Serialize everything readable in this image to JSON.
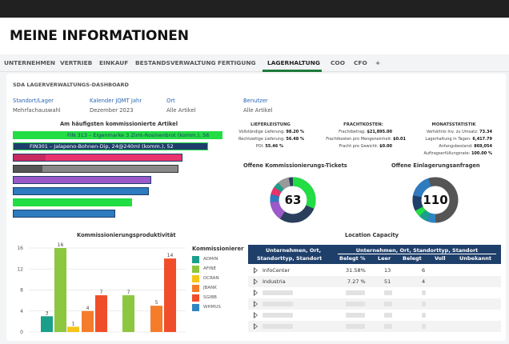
{
  "header": {
    "title": "MEINE INFORMATIONEN"
  },
  "tabs": [
    {
      "label": "UNTERNEHMEN"
    },
    {
      "label": "VERTRIEB"
    },
    {
      "label": "EINKAUF"
    },
    {
      "label": "BESTANDSVERWALTUNG"
    },
    {
      "label": "FERTIGUNG"
    },
    {
      "label": "LAGERHALTUNG"
    },
    {
      "label": "COO"
    },
    {
      "label": "CFO"
    },
    {
      "label": "+"
    }
  ],
  "dashboard": {
    "title": "SDA LAGERVERWALTUNGS-DASHBOARD"
  },
  "filters": [
    {
      "label": "Standort/Lager",
      "value": "Mehrfachauswahl"
    },
    {
      "label": "Kalender JQMT Jahr",
      "value": "Dezember 2023"
    },
    {
      "label": "Ort",
      "value": "Alle Artikel"
    },
    {
      "label": "Benutzer",
      "value": "Alle Artikel"
    }
  ],
  "top_items": {
    "title": "Am häufigsten kommissionierte Artikel",
    "label1": "FIN 313 – Eigenmarke 3 Zimt-Rosinenbrot (komm.), 56",
    "label2": "FIN301 – Jalapeno-Bohnen-Dip, 24@240ml (komm.), 52",
    "bar_levels": [
      1.0,
      0.93,
      0.81,
      0.79,
      0.66,
      0.65,
      0.57,
      0.49
    ],
    "colors": {
      "green": "#22dd44",
      "navy": "#1f3f6b",
      "pink": "#e8336e",
      "gray": "#888888",
      "purple": "#9b59c9",
      "blue": "#2e7bbf"
    }
  },
  "stats": {
    "lieferleistung": {
      "title": "LIEFERLEISTUNG",
      "rows": [
        {
          "label": "Vollständige Lieferung:",
          "value": "98.20 %"
        },
        {
          "label": "Rechtzeitige Lieferung:",
          "value": "56.48 %"
        },
        {
          "label": "POI:",
          "value": "55.46 %"
        }
      ]
    },
    "frachtkosten": {
      "title": "FRACHTKOSTEN:",
      "rows": [
        {
          "label": "Frachtbetrag:",
          "value": "$21,895.00"
        },
        {
          "label": "Frachtkosten pro Mengeneinheit:",
          "value": "$0.01"
        },
        {
          "label": "Fracht pro Gewicht:",
          "value": "$0.00"
        }
      ]
    },
    "monatsstatistik": {
      "title": "MONATSSTATISTIK",
      "rows": [
        {
          "label": "Verhältnis Inv. zu Umsatz:",
          "value": "73.34"
        },
        {
          "label": "Lagerhaltung in Tagen:",
          "value": "6,417.79"
        },
        {
          "label": "Anfangsbestand:",
          "value": "869,054"
        },
        {
          "label": "Auftragserfüllungsrate:",
          "value": "100.00 %"
        }
      ]
    }
  },
  "tickets": {
    "title": "Offene Kommissionierungs-Tickets",
    "value": "63"
  },
  "einlagerung": {
    "title": "Offene Einlagerungsanfragen",
    "value": "110"
  },
  "chart_data": {
    "type": "bar",
    "title": "Kommissionierungsproduktivität",
    "legend_title": "Kommissionierer",
    "legend_position": "right",
    "ylim": [
      0,
      16
    ],
    "yticks": [
      0,
      4,
      8,
      12,
      16
    ],
    "grid": true,
    "series": [
      {
        "name": "ADMIN",
        "color": "#1aa08a",
        "values": [
          3
        ]
      },
      {
        "name": "AFINE",
        "color": "#8dc63f",
        "values": [
          16,
          7
        ]
      },
      {
        "name": "DCRAN",
        "color": "#f5c518",
        "values": [
          1
        ]
      },
      {
        "name": "JBANK",
        "color": "#f57c2a",
        "values": [
          4,
          5
        ]
      },
      {
        "name": "SGIBB",
        "color": "#f04e2a",
        "values": [
          7,
          14
        ]
      },
      {
        "name": "WHMUS",
        "color": "#2e86c1",
        "values": []
      }
    ],
    "bars": [
      {
        "series": "ADMIN",
        "value": 3
      },
      {
        "series": "AFINE",
        "value": 16
      },
      {
        "series": "DCRAN",
        "value": 1
      },
      {
        "series": "JBANK",
        "value": 4
      },
      {
        "series": "SGIBB",
        "value": 7
      },
      {
        "series": "AFINE",
        "value": 7
      },
      {
        "series": "JBANK",
        "value": 5
      },
      {
        "series": "SGIBB",
        "value": 14
      }
    ]
  },
  "capacity": {
    "title": "Location Capacity",
    "header_left": "Unternehmen, Ort,",
    "header_left2": "Standorttyp, Standort",
    "header_group": "Unternehmen, Ort, Standorttyp, Standort",
    "columns": [
      "Belegt %",
      "Leer",
      "Belegt",
      "Voll",
      "Unbekannt"
    ],
    "rows": [
      {
        "name": "InfoCenter",
        "belegt_pct": "31.58%",
        "leer": "13",
        "belegt": "6"
      },
      {
        "name": "Industria",
        "belegt_pct": "7.27 %",
        "leer": "51",
        "belegt": "4"
      }
    ]
  }
}
